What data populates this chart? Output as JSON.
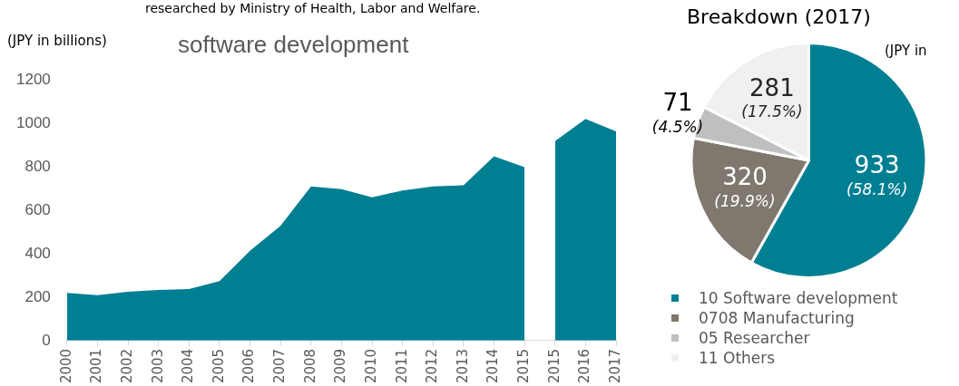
{
  "chart_data": [
    {
      "type": "area",
      "title": "software development",
      "ylabel": "(JPY in billions)",
      "annotations": [
        "researched by Ministry of Health, Labor and Welfare."
      ],
      "categories": [
        "2000",
        "2001",
        "2002",
        "2003",
        "2004",
        "2005",
        "2006",
        "2007",
        "2008",
        "2009",
        "2010",
        "2011",
        "2012",
        "2013",
        "2014",
        "2015",
        "2015",
        "2016",
        "2017"
      ],
      "series": [
        {
          "color": "#007f93",
          "values": [
            219,
            209,
            225,
            233,
            237,
            274,
            413,
            528,
            710,
            697,
            659,
            691,
            710,
            715,
            848,
            798,
            null,
            null,
            null
          ]
        },
        {
          "color": "#007f93",
          "values": [
            null,
            null,
            null,
            null,
            null,
            null,
            null,
            null,
            null,
            null,
            null,
            null,
            null,
            null,
            null,
            null,
            918,
            1020,
            963
          ]
        }
      ],
      "ylim": [
        0,
        1200
      ],
      "yticks": [
        0,
        200,
        400,
        600,
        800,
        1000,
        1200
      ],
      "grid": false,
      "legend": false
    },
    {
      "type": "pie",
      "title": "Breakdown (2017)",
      "annotations": [
        "(JPY in"
      ],
      "categories": [
        "10 Software development",
        "0708 Manufacturing",
        "05 Researcher",
        "11 Others"
      ],
      "values": [
        933,
        320,
        71,
        281
      ],
      "colors": [
        "#007f93",
        "#7f786e",
        "#bfbfbf",
        "#f0f0f0"
      ],
      "value_labels": [
        "933 (58.1%)",
        "320 (19.9%)",
        "71 (4.5%)",
        "281 (17.5%)"
      ],
      "legend": "bottom"
    }
  ]
}
